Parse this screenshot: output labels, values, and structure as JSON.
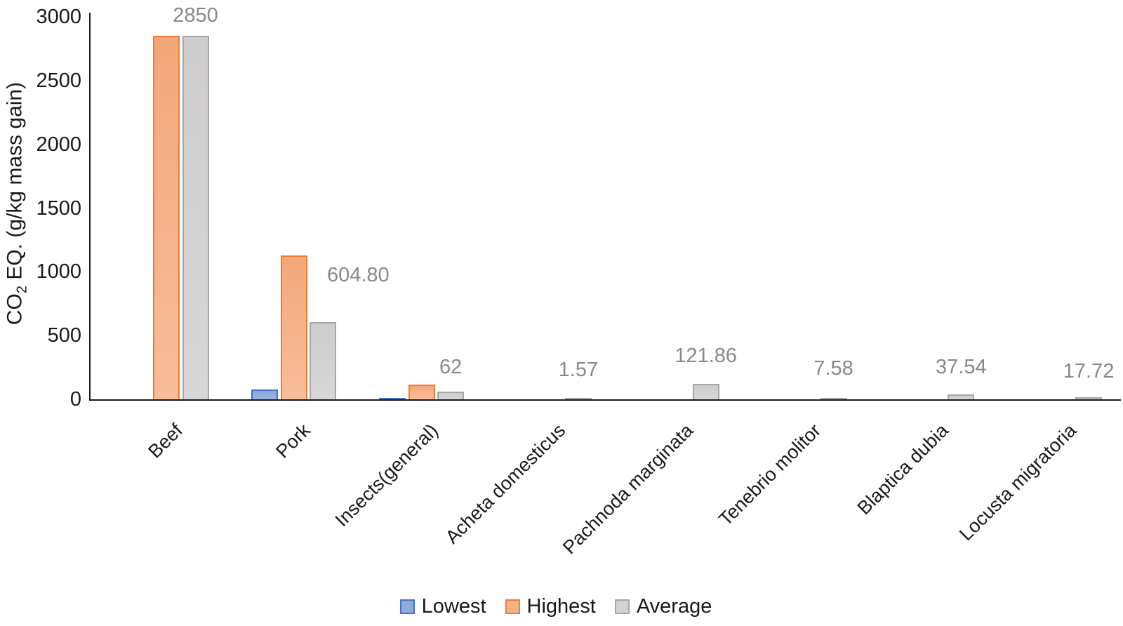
{
  "chart_data": {
    "type": "bar",
    "title": "",
    "ylabel": "CO2 EQ. (g/kg mass gain)",
    "ylabel_parts": {
      "prefix": "CO",
      "sub": "2",
      "rest": " EQ. (g/kg mass gain)"
    },
    "xlabel": "",
    "categories": [
      "Beef",
      "Pork",
      "Insects(general)",
      "Acheta domesticus",
      "Pachnoda marginata",
      "Tenebrio molitor",
      "Blaptica dubia",
      "Locusta migratoria"
    ],
    "series": [
      {
        "name": "Lowest",
        "values": [
          null,
          79.5,
          9,
          null,
          null,
          null,
          null,
          null
        ]
      },
      {
        "name": "Highest",
        "values": [
          2850,
          1130,
          115,
          null,
          null,
          null,
          null,
          null
        ]
      },
      {
        "name": "Average",
        "values": [
          2850,
          604.8,
          62,
          1.57,
          121.86,
          7.58,
          37.54,
          17.72
        ]
      }
    ],
    "data_labels_on_average": [
      "2850",
      "604.80",
      "62",
      "1.57",
      "121.86",
      "7.58",
      "37.54",
      "17.72"
    ],
    "ylim": [
      0,
      3000
    ],
    "ytick_step": 500,
    "ytick_labels": [
      "0",
      "500",
      "1000",
      "1500",
      "2000",
      "2500",
      "3000"
    ],
    "grid": "off",
    "legend_position": "bottom",
    "colors": {
      "lowest_fill": "#8FAADC",
      "lowest_border": "#4472C4",
      "highest_fill": "#F5B286",
      "highest_border": "#ED7D31",
      "average_fill": "#D2D2D2",
      "average_border": "#A6A6A6",
      "data_label_text": "#898989",
      "axis_text": "#1A1A1A"
    }
  }
}
